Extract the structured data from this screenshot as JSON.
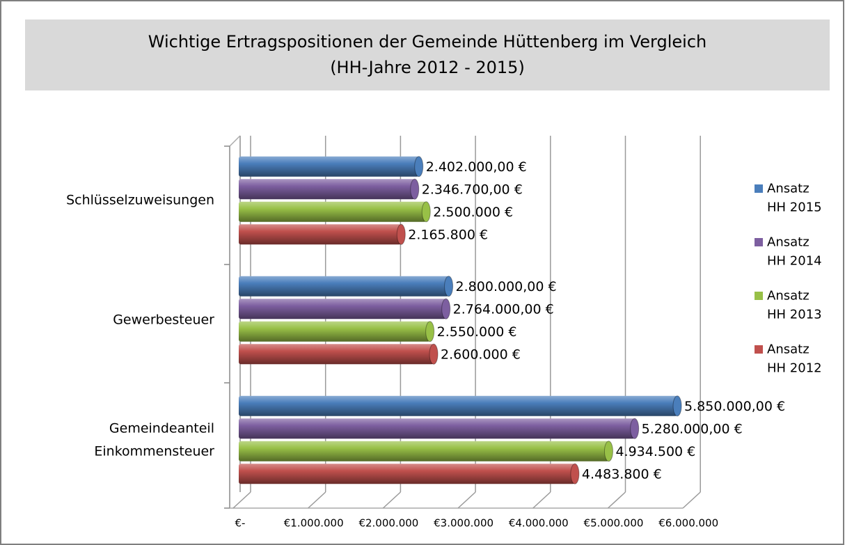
{
  "chart_data": {
    "type": "bar3d_horizontal",
    "title": "Wichtige Ertragspositionen der Gemeinde Hüttenberg im Vergleich",
    "subtitle": "(HH-Jahre 2012 - 2015)",
    "categories": [
      "Gemeindeanteil Einkommensteuer",
      "Gewerbesteuer",
      "Schlüsselzuweisungen"
    ],
    "series": [
      {
        "name": "Ansatz HH 2015",
        "color": "#4a7ebb",
        "values": [
          5850000,
          2800000,
          2402000
        ],
        "value_labels": [
          "5.850.000,00 €",
          "2.800.000,00 €",
          "2.402.000,00 €"
        ]
      },
      {
        "name": "Ansatz HH 2014",
        "color": "#7d5fa0",
        "values": [
          5280000,
          2764000,
          2346700
        ],
        "value_labels": [
          "5.280.000,00 €",
          "2.764.000,00 €",
          "2.346.700,00 €"
        ]
      },
      {
        "name": "Ansatz HH 2013",
        "color": "#98c047",
        "values": [
          4934500,
          2550000,
          2500000
        ],
        "value_labels": [
          "4.934.500 €",
          "2.550.000 €",
          "2.500.000 €"
        ]
      },
      {
        "name": "Ansatz HH 2012",
        "color": "#c0504d",
        "values": [
          4483800,
          2600000,
          2165800
        ],
        "value_labels": [
          "4.483.800 €",
          "2.600.000 €",
          "2.165.800 €"
        ]
      }
    ],
    "xlim": [
      0,
      6000000
    ],
    "xticks": [
      {
        "value": 0,
        "label": "€-"
      },
      {
        "value": 1000000,
        "label": "€1.000.000"
      },
      {
        "value": 2000000,
        "label": "€2.000.000"
      },
      {
        "value": 3000000,
        "label": "€3.000.000"
      },
      {
        "value": 4000000,
        "label": "€4.000.000"
      },
      {
        "value": 5000000,
        "label": "€5.000.000"
      },
      {
        "value": 6000000,
        "label": "€6.000.000"
      }
    ],
    "grid": true,
    "legend": "right"
  }
}
